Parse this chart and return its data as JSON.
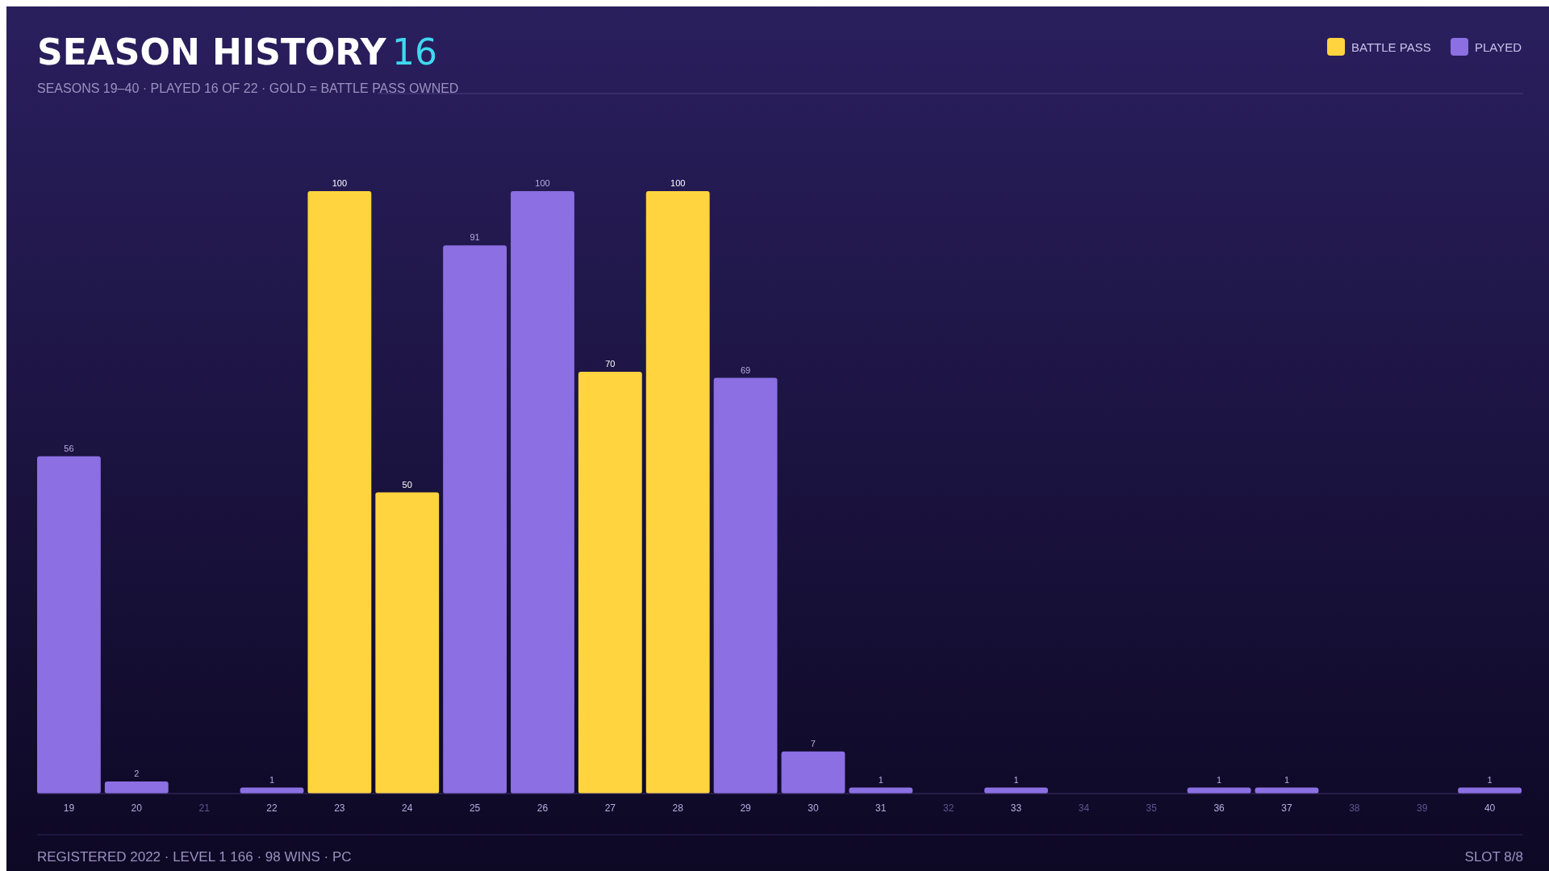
{
  "chart_data": {
    "type": "bar",
    "title": "SEASON HISTORY",
    "subtitle": "SEASONS 19–40 · PLAYED 16 OF 22 · GOLD = BATTLE PASS OWNED",
    "categories": [
      "19",
      "20",
      "21",
      "22",
      "23",
      "24",
      "25",
      "26",
      "27",
      "28",
      "29",
      "30",
      "31",
      "32",
      "33",
      "34",
      "35",
      "36",
      "37",
      "38",
      "39",
      "40"
    ],
    "data_labels": true,
    "legend": "top right",
    "tick_labels": "x",
    "series": [
      {
        "name": "BATTLE PASS",
        "color": "#ffd43f",
        "values": [
          null,
          null,
          null,
          null,
          100,
          50,
          null,
          null,
          70,
          100,
          null,
          null,
          null,
          null,
          null,
          null,
          null,
          null,
          null,
          null,
          null,
          null
        ]
      },
      {
        "name": "PLAYED",
        "color": "#8b6fe3",
        "values": [
          56,
          2,
          null,
          1,
          null,
          null,
          91,
          100,
          null,
          null,
          69,
          7,
          1,
          null,
          1,
          null,
          null,
          1,
          1,
          null,
          null,
          1
        ]
      }
    ],
    "annotations": [
      "16",
      "REGISTERED 2022 · LEVEL 1 166 · 98 WINS · PC",
      "SLOT 8/8"
    ]
  }
}
